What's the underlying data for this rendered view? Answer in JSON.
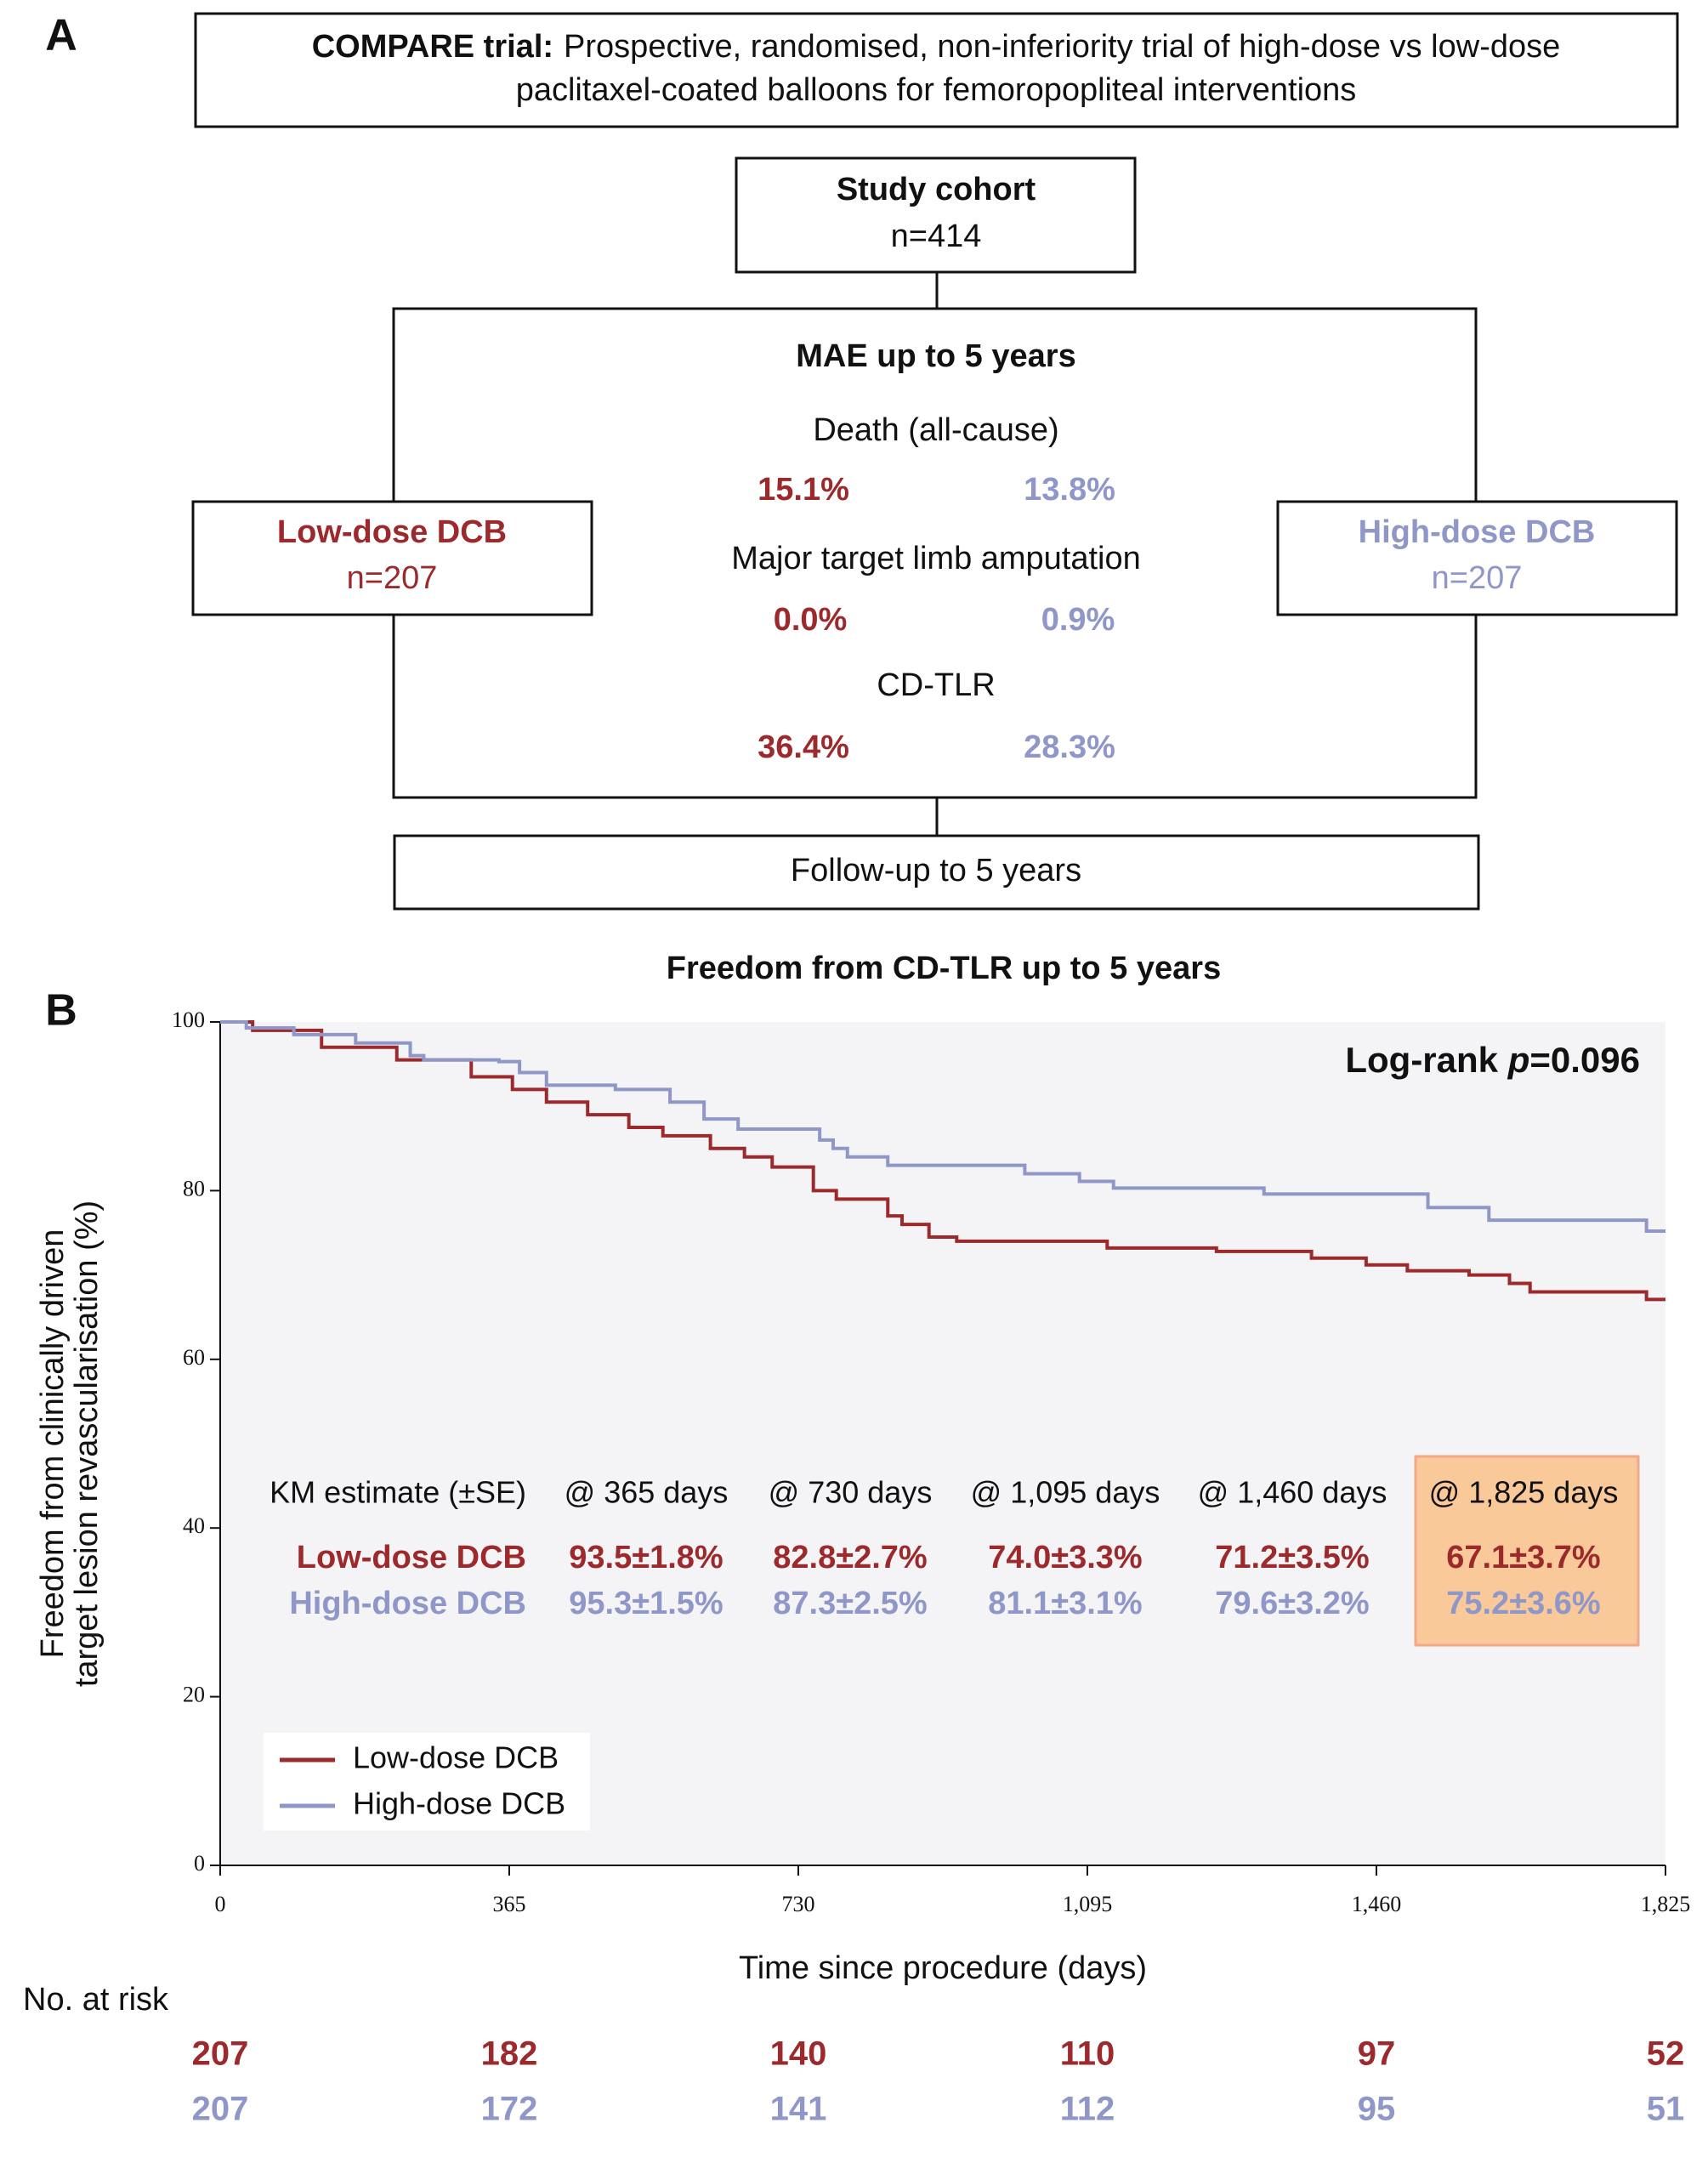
{
  "panel_a": {
    "label": "A",
    "trial": {
      "title": "COMPARE trial:",
      "lines": [
        "Prospective, randomised, non-inferiority trial of high-dose vs low-dose",
        "paclitaxel-coated balloons for femoropopliteal interventions"
      ]
    },
    "cohort": {
      "title": "Study cohort",
      "n": "n=414"
    },
    "mae": {
      "title": "MAE up to 5 years",
      "outcomes": [
        {
          "name": "Death (all-cause)",
          "low": "15.1%",
          "high": "13.8%"
        },
        {
          "name": "Major target limb amputation",
          "low": "0.0%",
          "high": "0.9%"
        },
        {
          "name": "CD-TLR",
          "low": "36.4%",
          "high": "28.3%"
        }
      ]
    },
    "low_dose": {
      "title": "Low-dose DCB",
      "n": "n=207"
    },
    "high_dose": {
      "title": "High-dose DCB",
      "n": "n=207"
    },
    "follow_up": "Follow-up to 5 years"
  },
  "panel_b_label": "B",
  "chart_data": {
    "type": "step-line",
    "title": "Freedom from CD-TLR up to 5 years",
    "x_label": "Time since procedure (days)",
    "y_label": [
      "Freedom from clinically driven",
      "target lesion revascularisation (%)"
    ],
    "xlim": [
      0,
      1825
    ],
    "ylim": [
      0,
      100
    ],
    "xticks": [
      0,
      365,
      730,
      {
        "value": 1095,
        "label": "1,095"
      },
      {
        "value": 1460,
        "label": "1,460"
      },
      {
        "value": 1825,
        "label": "1,825"
      }
    ],
    "yticks": [
      0,
      20,
      40,
      60,
      80,
      100
    ],
    "legend": "bottom-left",
    "series": [
      {
        "name": "Low-dose DCB",
        "color": "#9c2a2c",
        "x": [
          0,
          41,
          128,
          223,
          317,
          369,
          412,
          464,
          516,
          559,
          619,
          662,
          697,
          749,
          778,
          843,
          861,
          895,
          930,
          1120,
          1258,
          1378,
          1447,
          1499,
          1577,
          1628,
          1654,
          1801,
          1825
        ],
        "values": [
          100,
          99,
          97,
          95.5,
          93.5,
          92,
          90.5,
          89,
          87.5,
          86.5,
          85,
          84,
          82.8,
          80,
          79,
          77,
          76,
          74.5,
          74,
          73.2,
          72.8,
          72,
          71.2,
          70.5,
          70,
          69,
          68,
          67.1,
          67.1
        ]
      },
      {
        "name": "High-dose DCB",
        "color": "#8f96c8",
        "x": [
          0,
          33,
          93,
          171,
          240,
          257,
          352,
          378,
          412,
          499,
          568,
          611,
          654,
          757,
          774,
          792,
          843,
          1016,
          1085,
          1128,
          1318,
          1525,
          1602,
          1801,
          1825
        ],
        "values": [
          100,
          99.3,
          98.5,
          97.5,
          96,
          95.5,
          95.3,
          94,
          92.5,
          92,
          90.5,
          88.5,
          87.3,
          86,
          85,
          84,
          83,
          82,
          81.1,
          80.3,
          79.6,
          78,
          76.5,
          75.2,
          75.2
        ]
      }
    ],
    "annotation": {
      "prefix": "Log-rank ",
      "italic": "p",
      "suffix": "=0.096"
    },
    "km_table": {
      "header": [
        "KM estimate (±SE)",
        "@ 365 days",
        "@ 730 days",
        "@ 1,095 days",
        "@ 1,460 days",
        "@ 1,825 days"
      ],
      "rows": [
        [
          "93.5±1.8%",
          "82.8±2.7%",
          "74.0±3.3%",
          "71.2±3.5%",
          "67.1±3.7%"
        ],
        [
          "95.3±1.5%",
          "87.3±2.5%",
          "81.1±3.1%",
          "79.6±3.2%",
          "75.2±3.6%"
        ]
      ]
    },
    "at_risk": {
      "title": "No. at risk",
      "rows": [
        [
          207,
          182,
          140,
          110,
          97,
          52
        ],
        [
          207,
          172,
          141,
          112,
          95,
          51
        ]
      ]
    }
  }
}
